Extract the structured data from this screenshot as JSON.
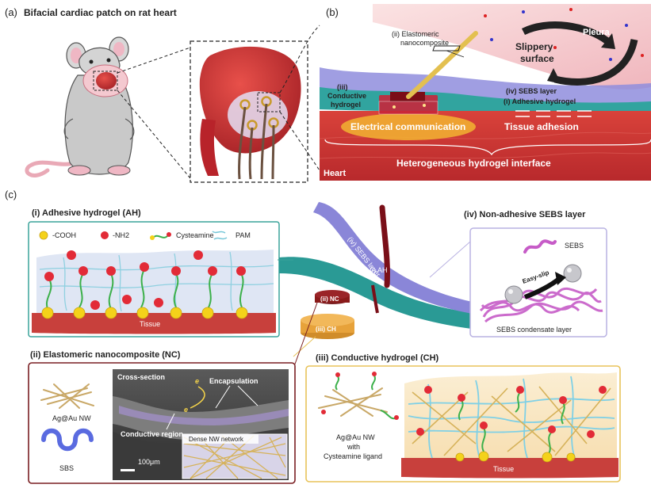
{
  "panel_a": {
    "label": "(a)",
    "title": "Bifacial cardiac patch on rat heart"
  },
  "panel_b": {
    "label": "(b)",
    "pleura": "Pleura",
    "slippery_line1": "Slippery",
    "slippery_line2": "surface",
    "nc_line1": "(ii) Elastomeric",
    "nc_line2": "nanocomposite",
    "ch_line1": "(iii)",
    "ch_line2": "Conductive",
    "ch_line3": "hydrogel",
    "sebs": "(iv) SEBS layer",
    "ah": "(i) Adhesive hydrogel",
    "electrical": "Electrical communication",
    "adhesion": "Tissue adhesion",
    "heart": "Heart",
    "interface": "Heterogeneous hydrogel interface"
  },
  "panel_c": {
    "label": "(c)",
    "ah_title": "(i) Adhesive hydrogel (AH)",
    "legend_cooh": "-COOH",
    "legend_nh2": "-NH2",
    "legend_cysteamine": "Cysteamine",
    "legend_pam": "PAM",
    "tissue": "Tissue",
    "sebs_title": "(iv) Non-adhesive SEBS layer",
    "sebs_label": "SEBS",
    "easy_slip": "Easy-slip",
    "condensate": "SEBS condensate layer",
    "strip_sebs": "(iv) SEBS layer",
    "strip_ah": "(i) AH",
    "strip_nc": "(ii) NC",
    "strip_ch": "(iii) CH"
  },
  "nc_panel": {
    "title": "(ii) Elastomeric nanocomposite (NC)",
    "agau": "Ag@Au NW",
    "sbs": "SBS",
    "cross_section": "Cross-section",
    "encapsulation": "Encapsulation",
    "conductive_region": "Conductive region",
    "dense_nw": "Dense NW network",
    "scale": "100μm",
    "e_symbol": "e"
  },
  "ch_panel": {
    "title": "(iii) Conductive hydrogel (CH)",
    "agau_line1": "Ag@Au NW",
    "agau_line2": "with",
    "agau_line3": "Cysteamine ligand",
    "tissue": "Tissue"
  },
  "colors": {
    "tissue": "#c8403c",
    "ah_teal": "#2a9a95",
    "sebs_purple": "#8a86d8",
    "ch_gold": "#e7a23a",
    "nc_dark": "#8a1a1a",
    "sebs_magenta": "#c65bc7",
    "ah_box_border": "#3aa39a",
    "sebs_box_border": "#b9b2e2",
    "nc_box_border": "#7a1f22",
    "ch_box_border": "#e8c35a"
  }
}
